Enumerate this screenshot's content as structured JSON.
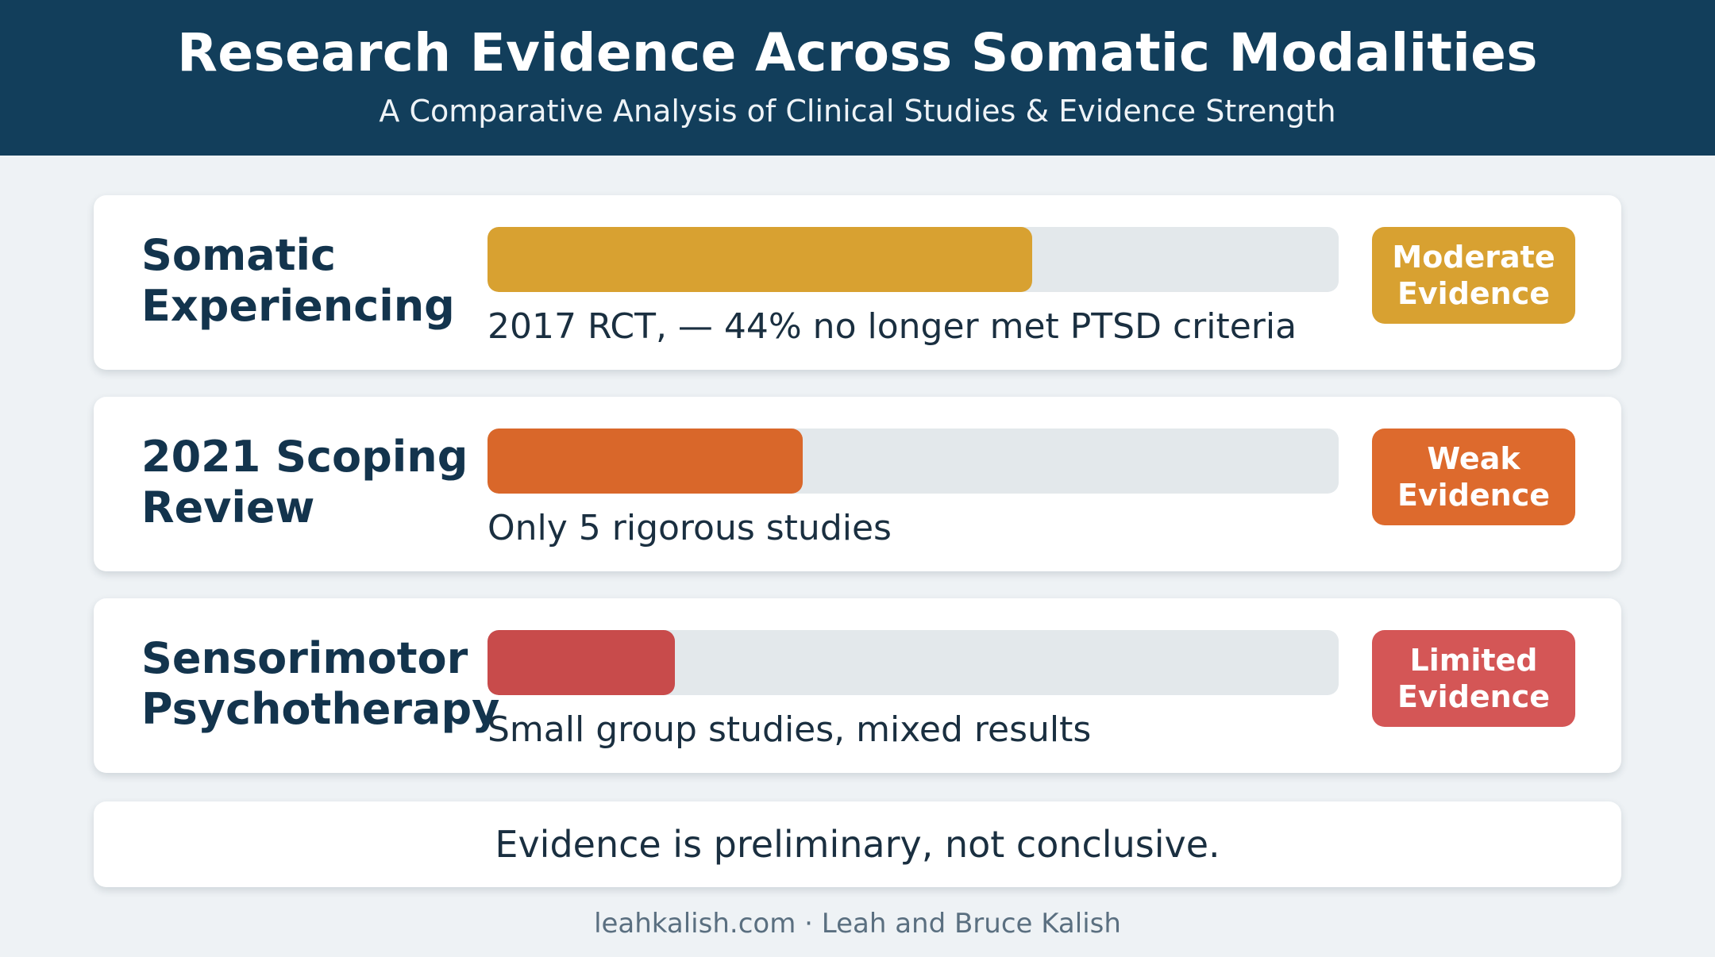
{
  "header": {
    "title": "Research Evidence Across Somatic Modalities",
    "subtitle": "A Comparative Analysis of Clinical Studies & Evidence Strength"
  },
  "chart_data": {
    "type": "bar",
    "orientation": "horizontal",
    "grid": false,
    "legend": "none",
    "scale_max": 100,
    "rows": [
      {
        "label_lines": [
          "Somatic",
          "Experiencing"
        ],
        "value": 64,
        "detail": "2017 RCT, — 44% no longer met PTSD criteria",
        "badge_lines": [
          "Moderate",
          "Evidence"
        ],
        "color": "#d8a131",
        "badge_color": "#d8a131"
      },
      {
        "label_lines": [
          "2021 Scoping",
          "Review"
        ],
        "value": 37,
        "detail": "Only 5 rigorous studies",
        "badge_lines": [
          "Weak",
          "Evidence"
        ],
        "color": "#d9672a",
        "badge_color": "#dd6a2d"
      },
      {
        "label_lines": [
          "Sensorimotor",
          "Psychotherapy"
        ],
        "value": 22,
        "detail": "Small group studies, mixed results",
        "badge_lines": [
          "Limited",
          "Evidence"
        ],
        "color": "#c84b4b",
        "badge_color": "#d45656"
      }
    ]
  },
  "note": "Evidence is preliminary, not conclusive.",
  "footer": "leahkalish.com · Leah and Bruce Kalish"
}
